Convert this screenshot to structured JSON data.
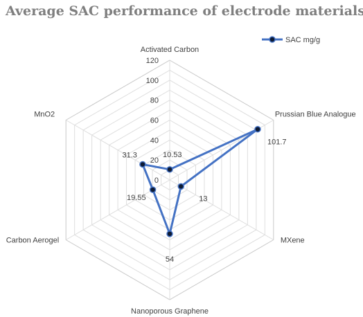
{
  "chart_data": {
    "type": "radar",
    "title": "Average SAC performance of electrode materials",
    "categories": [
      "Activated Carbon",
      "Prussian Blue Analogue",
      "MXene",
      "Nanoporous Graphene",
      "Carbon Aerogel",
      "MnO2"
    ],
    "series": [
      {
        "name": "SAC mg/g",
        "values": [
          10.53,
          101.7,
          13,
          54,
          19.55,
          31.3
        ],
        "color": "#4472c4"
      }
    ],
    "data_labels": [
      "10.53",
      "101.7",
      "13",
      "54",
      "19.55",
      "31.3"
    ],
    "r_ticks": [
      "0",
      "20",
      "40",
      "60",
      "80",
      "100",
      "120"
    ],
    "rlim": [
      0,
      120
    ],
    "grid": true,
    "legend": "top-right"
  }
}
